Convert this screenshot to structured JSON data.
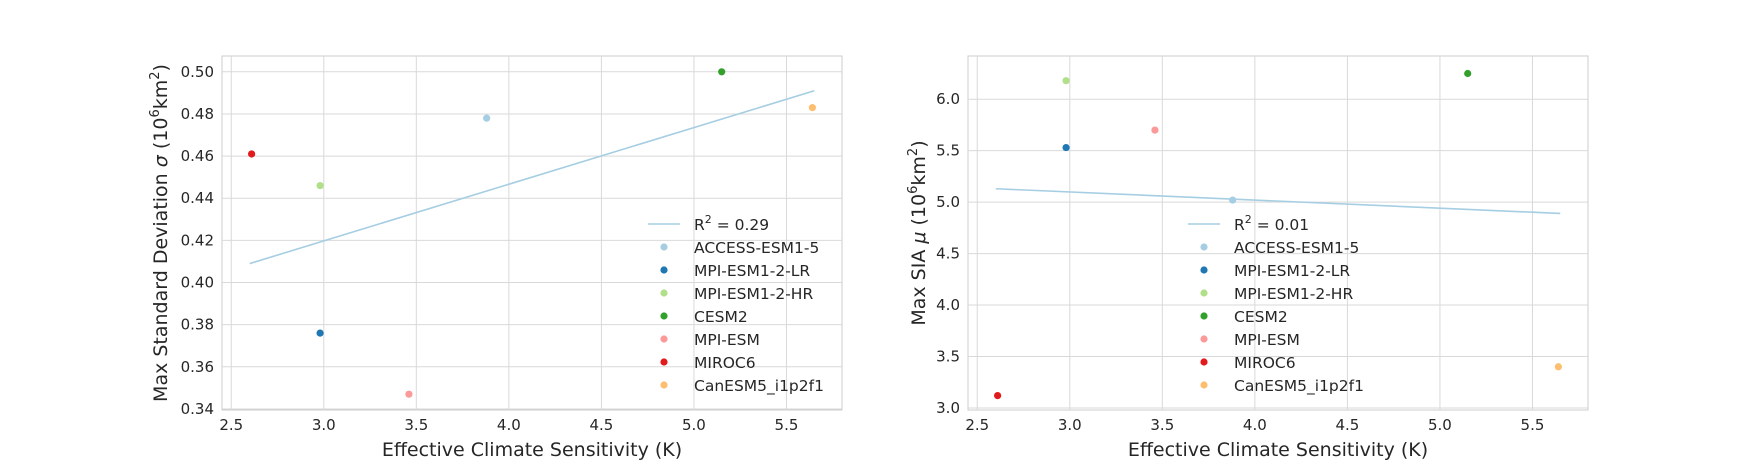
{
  "chart_data": [
    {
      "type": "scatter",
      "xlabel": "Effective Climate Sensitivity (K)",
      "ylabel_main": "Max Standard Deviation ",
      "ylabel_sym": "σ",
      "ylabel_unit_open": " (10",
      "ylabel_unit_exp1": "6",
      "ylabel_unit_mid": "km",
      "ylabel_unit_exp2": "2",
      "ylabel_unit_close": ")",
      "xlim": [
        2.45,
        5.8
      ],
      "ylim": [
        0.3395,
        0.5075
      ],
      "xticks": [
        "2.5",
        "3.0",
        "3.5",
        "4.0",
        "4.5",
        "5.0",
        "5.5"
      ],
      "yticks": [
        "0.34",
        "0.36",
        "0.38",
        "0.40",
        "0.42",
        "0.44",
        "0.46",
        "0.48",
        "0.50"
      ],
      "grid": true,
      "legend_placement": "lower-right",
      "fit": {
        "label_prefix": "R",
        "label_exp": "2",
        "label_suffix": " = 0.29",
        "x": [
          2.6,
          5.65
        ],
        "y": [
          0.409,
          0.491
        ],
        "color": "#a6cee3"
      },
      "series": [
        {
          "name": "ACCESS-ESM1-5",
          "x": 3.88,
          "y": 0.478,
          "color": "#a6cee3"
        },
        {
          "name": "MPI-ESM1-2-LR",
          "x": 2.98,
          "y": 0.376,
          "color": "#1f78b4"
        },
        {
          "name": "MPI-ESM1-2-HR",
          "x": 2.98,
          "y": 0.446,
          "color": "#b2df8a"
        },
        {
          "name": "CESM2",
          "x": 5.15,
          "y": 0.5,
          "color": "#33a02c"
        },
        {
          "name": "MPI-ESM",
          "x": 3.46,
          "y": 0.347,
          "color": "#fb9a99"
        },
        {
          "name": "MIROC6",
          "x": 2.61,
          "y": 0.461,
          "color": "#e31a1c"
        },
        {
          "name": "CanESM5_i1p2f1",
          "x": 5.64,
          "y": 0.483,
          "color": "#fdbf6f"
        }
      ]
    },
    {
      "type": "scatter",
      "xlabel": "Effective Climate Sensitivity (K)",
      "ylabel_main": "Max SIA ",
      "ylabel_sym": "μ",
      "ylabel_unit_open": " (10",
      "ylabel_unit_exp1": "6",
      "ylabel_unit_mid": "km",
      "ylabel_unit_exp2": "2",
      "ylabel_unit_close": ")",
      "xlim": [
        2.45,
        5.8
      ],
      "ylim": [
        2.98,
        6.42
      ],
      "xticks": [
        "2.5",
        "3.0",
        "3.5",
        "4.0",
        "4.5",
        "5.0",
        "5.5"
      ],
      "yticks": [
        "3.0",
        "3.5",
        "4.0",
        "4.5",
        "5.0",
        "5.5",
        "6.0"
      ],
      "grid": true,
      "legend_placement": "lower-center",
      "fit": {
        "label_prefix": "R",
        "label_exp": "2",
        "label_suffix": " = 0.01",
        "x": [
          2.6,
          5.65
        ],
        "y": [
          5.13,
          4.89
        ],
        "color": "#a6cee3"
      },
      "series": [
        {
          "name": "ACCESS-ESM1-5",
          "x": 3.88,
          "y": 5.02,
          "color": "#a6cee3"
        },
        {
          "name": "MPI-ESM1-2-LR",
          "x": 2.98,
          "y": 5.53,
          "color": "#1f78b4"
        },
        {
          "name": "MPI-ESM1-2-HR",
          "x": 2.98,
          "y": 6.18,
          "color": "#b2df8a"
        },
        {
          "name": "CESM2",
          "x": 5.15,
          "y": 6.25,
          "color": "#33a02c"
        },
        {
          "name": "MPI-ESM",
          "x": 3.46,
          "y": 5.7,
          "color": "#fb9a99"
        },
        {
          "name": "MIROC6",
          "x": 2.61,
          "y": 3.12,
          "color": "#e31a1c"
        },
        {
          "name": "CanESM5_i1p2f1",
          "x": 5.64,
          "y": 3.4,
          "color": "#fdbf6f"
        }
      ]
    }
  ]
}
